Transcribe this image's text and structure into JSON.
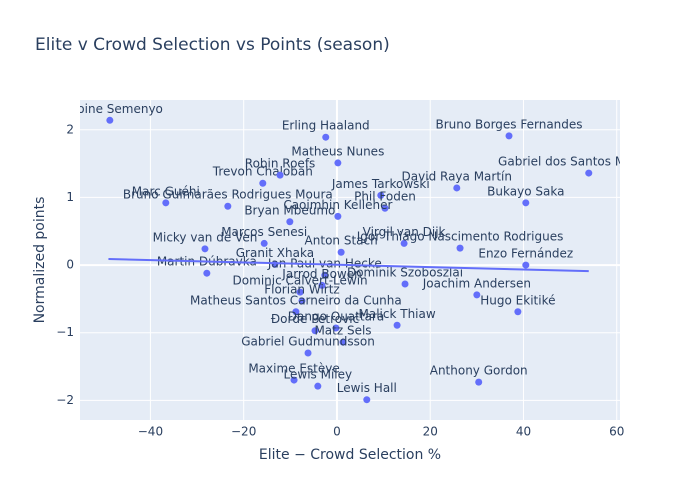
{
  "chart_data": {
    "type": "scatter",
    "title": "Elite v Crowd Selection vs Points (season)",
    "x_label": "Elite − Crowd Selection %",
    "y_label": "Normalized points",
    "xlim": [
      -55.1,
      60.7
    ],
    "ylim": [
      -2.29,
      2.44
    ],
    "xticks": [
      {
        "value": -40,
        "label": "−40"
      },
      {
        "value": -20,
        "label": "−20"
      },
      0,
      20,
      40,
      60
    ],
    "yticks": [
      {
        "value": -2,
        "label": "−2"
      },
      {
        "value": -1,
        "label": "−1"
      },
      0,
      1,
      2
    ],
    "grid": true,
    "color": "#636efa",
    "point_labels": [
      "Antoine Semenyo",
      "Erling Haaland",
      "Bruno Borges Fernandes",
      "Matheus Nunes",
      "Gabriel dos Santos Magalhães",
      "Trevoh Chalobah",
      "Robin Roefs",
      "David Raya Martín",
      "James Tarkowski",
      "Marc Guéhi",
      "Bruno Guimarães Rodrigues Moura",
      "Bukayo Saka",
      "Bryan Mbeumo",
      "Phil Foden",
      "Caoimhin Kelleher",
      "Micky van de Ven",
      "Marcos Senesi",
      "Anton Stach",
      "Virgil van Dijk",
      "Igor Thiago Nascimento Rodrigues",
      "Enzo Fernández",
      "Granit Xhaka",
      "Martin Dúbravka",
      "Jan Paul van Hecke",
      "Jarrod Bowen",
      "Dominik Szoboszlai",
      "Joachim Andersen",
      "Dominic Calvert-Lewin",
      "Florian Wirtz",
      "Hugo Ekitiké",
      "Matheus Santos Carneiro da Cunha",
      "Malick Thiaw",
      "Đorđe Petrović",
      "Dango Ouattara",
      "Matz Sels",
      "Gabriel Gudmundsson",
      "Maxime Estève",
      "Lewis Miley",
      "Anthony Gordon",
      "Lewis Hall"
    ],
    "x": [
      -48.7,
      -2.4,
      36.9,
      0.2,
      54.0,
      -15.9,
      -12.2,
      25.7,
      9.4,
      -36.7,
      -23.4,
      40.5,
      -10.1,
      10.3,
      0.2,
      -28.3,
      -15.6,
      0.9,
      14.4,
      26.4,
      40.5,
      -13.3,
      -27.9,
      -2.6,
      -3.2,
      14.6,
      30.0,
      -7.9,
      -7.5,
      38.8,
      -8.8,
      12.9,
      -4.7,
      -0.2,
      1.3,
      -6.2,
      -9.2,
      -4.1,
      30.4,
      6.4
    ],
    "y": [
      2.14,
      1.89,
      1.91,
      1.51,
      1.36,
      1.21,
      1.33,
      1.14,
      1.03,
      0.92,
      0.87,
      0.92,
      0.64,
      0.84,
      0.72,
      0.24,
      0.32,
      0.19,
      0.32,
      0.25,
      0.0,
      0.01,
      -0.12,
      -0.15,
      -0.3,
      -0.28,
      -0.44,
      -0.4,
      -0.53,
      -0.69,
      -0.69,
      -0.89,
      -0.97,
      -0.93,
      -1.14,
      -1.3,
      -1.7,
      -1.79,
      -1.73,
      -1.99
    ],
    "trendline": {
      "x": [
        -49,
        54
      ],
      "y": [
        0.09,
        -0.09
      ]
    }
  }
}
